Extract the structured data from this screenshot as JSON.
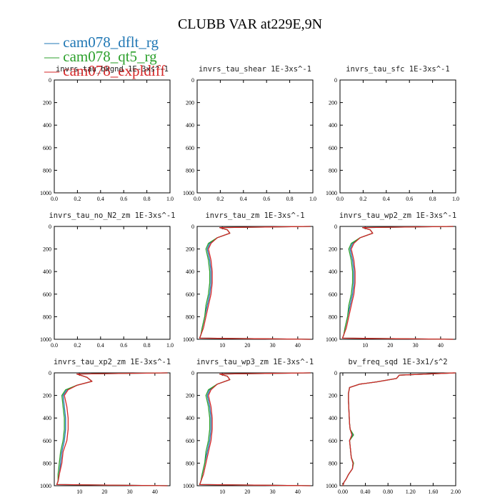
{
  "figure": {
    "title": "CLUBB VAR at229E,9N",
    "legend": [
      {
        "label": "cam078_dflt_rg",
        "color": "#1f77b4"
      },
      {
        "label": "cam078_qt5_rg",
        "color": "#2ca02c"
      },
      {
        "label": "cam078_expldiff",
        "color": "#d62728"
      }
    ]
  },
  "chart_data": [
    {
      "type": "line",
      "title": "invrs_tau_bkgnd",
      "unit": "1E-3xs^-1",
      "xlim": [
        0,
        1
      ],
      "ylim": [
        1000,
        0
      ],
      "xticks": [
        "0.0",
        "0.2",
        "0.4",
        "0.6",
        "0.8",
        "1.0"
      ],
      "yticks": [
        "0",
        "200",
        "400",
        "600",
        "800",
        "1000"
      ],
      "series": []
    },
    {
      "type": "line",
      "title": "invrs_tau_shear",
      "unit": "1E-3xs^-1",
      "xlim": [
        0,
        1
      ],
      "ylim": [
        1000,
        0
      ],
      "xticks": [
        "0.0",
        "0.2",
        "0.4",
        "0.6",
        "0.8",
        "1.0"
      ],
      "yticks": [
        "0",
        "200",
        "400",
        "600",
        "800",
        "1000"
      ],
      "series": []
    },
    {
      "type": "line",
      "title": "invrs_tau_sfc",
      "unit": "1E-3xs^-1",
      "xlim": [
        0,
        1
      ],
      "ylim": [
        1000,
        0
      ],
      "xticks": [
        "0.0",
        "0.2",
        "0.4",
        "0.6",
        "0.8",
        "1.0"
      ],
      "yticks": [
        "0",
        "200",
        "400",
        "600",
        "800",
        "1000"
      ],
      "series": []
    },
    {
      "type": "line",
      "title": "invrs_tau_no_N2_zm",
      "unit": "1E-3xs^-1",
      "xlim": [
        0,
        1
      ],
      "ylim": [
        1000,
        0
      ],
      "xticks": [
        "0.0",
        "0.2",
        "0.4",
        "0.6",
        "0.8",
        "1.0"
      ],
      "yticks": [
        "0",
        "200",
        "400",
        "600",
        "800",
        "1000"
      ],
      "series": []
    },
    {
      "type": "line",
      "title": "invrs_tau_zm",
      "unit": "1E-3xs^-1",
      "xlim": [
        0,
        46
      ],
      "ylim": [
        1000,
        0
      ],
      "xticks": [
        "10",
        "20",
        "30",
        "40"
      ],
      "yticks": [
        "0",
        "200",
        "400",
        "600",
        "800",
        "1000"
      ],
      "series": [
        {
          "color": "#1f77b4",
          "x": [
            45,
            9,
            12,
            13,
            8,
            5,
            4,
            5,
            5.5,
            5.5,
            5,
            4,
            3,
            2,
            1.5,
            1,
            45
          ],
          "y": [
            0,
            10,
            30,
            60,
            100,
            150,
            200,
            300,
            400,
            500,
            600,
            700,
            800,
            900,
            960,
            990,
            1000
          ]
        },
        {
          "color": "#2ca02c",
          "x": [
            45,
            9,
            12,
            13,
            8,
            4.5,
            3.5,
            4.5,
            5,
            5,
            4.5,
            3.5,
            3,
            2,
            1.5,
            1,
            45
          ],
          "y": [
            0,
            10,
            30,
            60,
            100,
            150,
            200,
            300,
            400,
            500,
            600,
            700,
            800,
            900,
            960,
            990,
            1000
          ]
        },
        {
          "color": "#d62728",
          "x": [
            45,
            9,
            12,
            13,
            8,
            5.5,
            4.5,
            5.5,
            6,
            6,
            5.5,
            4.5,
            3.5,
            2.5,
            1.5,
            1,
            45
          ],
          "y": [
            0,
            10,
            30,
            60,
            100,
            150,
            200,
            300,
            400,
            500,
            600,
            700,
            800,
            900,
            960,
            990,
            1000
          ]
        }
      ]
    },
    {
      "type": "line",
      "title": "invrs_tau_wp2_zm",
      "unit": "1E-3xs^-1",
      "xlim": [
        0,
        46
      ],
      "ylim": [
        1000,
        0
      ],
      "xticks": [
        "10",
        "20",
        "30",
        "40"
      ],
      "yticks": [
        "0",
        "200",
        "400",
        "600",
        "800",
        "1000"
      ],
      "series": [
        {
          "color": "#1f77b4",
          "x": [
            45,
            9,
            12,
            13,
            8,
            5,
            4,
            5,
            5.5,
            5.5,
            5,
            4,
            3,
            2,
            1.5,
            1,
            45
          ],
          "y": [
            0,
            10,
            30,
            60,
            100,
            150,
            200,
            300,
            400,
            500,
            600,
            700,
            800,
            900,
            960,
            990,
            1000
          ]
        },
        {
          "color": "#2ca02c",
          "x": [
            45,
            9,
            12,
            13,
            8,
            4.5,
            3.5,
            4.5,
            5,
            5,
            4.5,
            3.5,
            3,
            2,
            1.5,
            1,
            45
          ],
          "y": [
            0,
            10,
            30,
            60,
            100,
            150,
            200,
            300,
            400,
            500,
            600,
            700,
            800,
            900,
            960,
            990,
            1000
          ]
        },
        {
          "color": "#d62728",
          "x": [
            45,
            9,
            12,
            13,
            8,
            5.5,
            4.5,
            5.5,
            6,
            6,
            5.5,
            4.5,
            3.5,
            2.5,
            1.5,
            1,
            45
          ],
          "y": [
            0,
            10,
            30,
            60,
            100,
            150,
            200,
            300,
            400,
            500,
            600,
            700,
            800,
            900,
            960,
            990,
            1000
          ]
        }
      ]
    },
    {
      "type": "line",
      "title": "invrs_tau_xp2_zm",
      "unit": "1E-3xs^-1",
      "xlim": [
        0,
        46
      ],
      "ylim": [
        1000,
        0
      ],
      "xticks": [
        "10",
        "20",
        "30",
        "40"
      ],
      "yticks": [
        "0",
        "200",
        "400",
        "600",
        "800",
        "1000"
      ],
      "series": [
        {
          "color": "#1f77b4",
          "x": [
            45,
            9,
            13,
            15,
            9,
            5,
            3.5,
            4,
            4.5,
            4.5,
            4,
            3,
            2.5,
            2,
            1.5,
            1,
            45
          ],
          "y": [
            0,
            10,
            40,
            75,
            110,
            150,
            200,
            300,
            400,
            500,
            600,
            700,
            800,
            900,
            960,
            990,
            1000
          ]
        },
        {
          "color": "#2ca02c",
          "x": [
            45,
            9,
            13,
            15,
            9,
            4.5,
            3,
            3.5,
            4,
            4,
            3.5,
            2.5,
            2,
            1.5,
            1.5,
            1,
            45
          ],
          "y": [
            0,
            10,
            40,
            75,
            110,
            150,
            200,
            300,
            400,
            500,
            600,
            700,
            800,
            900,
            960,
            990,
            1000
          ]
        },
        {
          "color": "#d62728",
          "x": [
            45,
            9,
            13,
            15,
            9,
            5.5,
            4,
            5,
            5.5,
            5.5,
            5,
            3.5,
            3,
            2,
            1.5,
            1,
            45
          ],
          "y": [
            0,
            10,
            40,
            75,
            110,
            150,
            200,
            300,
            400,
            500,
            600,
            700,
            800,
            900,
            960,
            990,
            1000
          ]
        }
      ]
    },
    {
      "type": "line",
      "title": "invrs_tau_wp3_zm",
      "unit": "1E-3xs^-1",
      "xlim": [
        0,
        46
      ],
      "ylim": [
        1000,
        0
      ],
      "xticks": [
        "10",
        "20",
        "30",
        "40"
      ],
      "yticks": [
        "0",
        "200",
        "400",
        "600",
        "800",
        "1000"
      ],
      "series": [
        {
          "color": "#1f77b4",
          "x": [
            45,
            9,
            12,
            13,
            8,
            5,
            4,
            5,
            5.5,
            5.5,
            5,
            4,
            3,
            2,
            1.5,
            1,
            45
          ],
          "y": [
            0,
            10,
            30,
            60,
            100,
            150,
            200,
            300,
            400,
            500,
            600,
            700,
            800,
            900,
            960,
            990,
            1000
          ]
        },
        {
          "color": "#2ca02c",
          "x": [
            45,
            9,
            12,
            13,
            8,
            4.5,
            3.5,
            4.5,
            5,
            5,
            4.5,
            3.5,
            3,
            2,
            1.5,
            1,
            45
          ],
          "y": [
            0,
            10,
            30,
            60,
            100,
            150,
            200,
            300,
            400,
            500,
            600,
            700,
            800,
            900,
            960,
            990,
            1000
          ]
        },
        {
          "color": "#d62728",
          "x": [
            45,
            9,
            12,
            13,
            8,
            5.5,
            4.5,
            5.5,
            6,
            6,
            5.5,
            4.5,
            3.5,
            2.5,
            1.5,
            1,
            45
          ],
          "y": [
            0,
            10,
            30,
            60,
            100,
            150,
            200,
            300,
            400,
            500,
            600,
            700,
            800,
            900,
            960,
            990,
            1000
          ]
        }
      ]
    },
    {
      "type": "line",
      "title": "bv_freq_sqd",
      "unit": "1E-3x1/s^2",
      "xlim": [
        -0.05,
        2.0
      ],
      "ylim": [
        1000,
        0
      ],
      "xticks": [
        "0.00",
        "0.40",
        "0.80",
        "1.20",
        "1.60",
        "2.00"
      ],
      "yticks": [
        "0",
        "200",
        "400",
        "600",
        "800",
        "1000"
      ],
      "series": [
        {
          "color": "#1f77b4",
          "x": [
            2.0,
            1.0,
            0.95,
            0.6,
            0.3,
            0.12,
            0.1,
            0.1,
            0.11,
            0.12,
            0.13,
            0.17,
            0.12,
            0.14,
            0.15,
            0.18,
            0.17,
            0.1,
            0.06,
            0.02,
            0.0
          ],
          "y": [
            0,
            20,
            50,
            80,
            100,
            130,
            180,
            250,
            350,
            450,
            500,
            550,
            600,
            700,
            750,
            800,
            850,
            900,
            940,
            970,
            1000
          ]
        },
        {
          "color": "#2ca02c",
          "x": [
            2.0,
            1.0,
            0.95,
            0.6,
            0.3,
            0.12,
            0.1,
            0.1,
            0.11,
            0.12,
            0.13,
            0.19,
            0.12,
            0.14,
            0.15,
            0.19,
            0.17,
            0.1,
            0.06,
            0.02,
            0.0
          ],
          "y": [
            0,
            20,
            50,
            80,
            100,
            130,
            180,
            250,
            350,
            450,
            500,
            550,
            600,
            700,
            750,
            800,
            850,
            900,
            940,
            970,
            1000
          ]
        },
        {
          "color": "#d62728",
          "x": [
            2.0,
            1.0,
            0.95,
            0.6,
            0.3,
            0.12,
            0.1,
            0.1,
            0.11,
            0.12,
            0.13,
            0.16,
            0.12,
            0.14,
            0.15,
            0.18,
            0.17,
            0.1,
            0.06,
            0.02,
            0.0
          ],
          "y": [
            0,
            20,
            50,
            80,
            100,
            130,
            180,
            250,
            350,
            450,
            500,
            550,
            600,
            700,
            750,
            800,
            850,
            900,
            940,
            970,
            1000
          ]
        }
      ]
    }
  ]
}
